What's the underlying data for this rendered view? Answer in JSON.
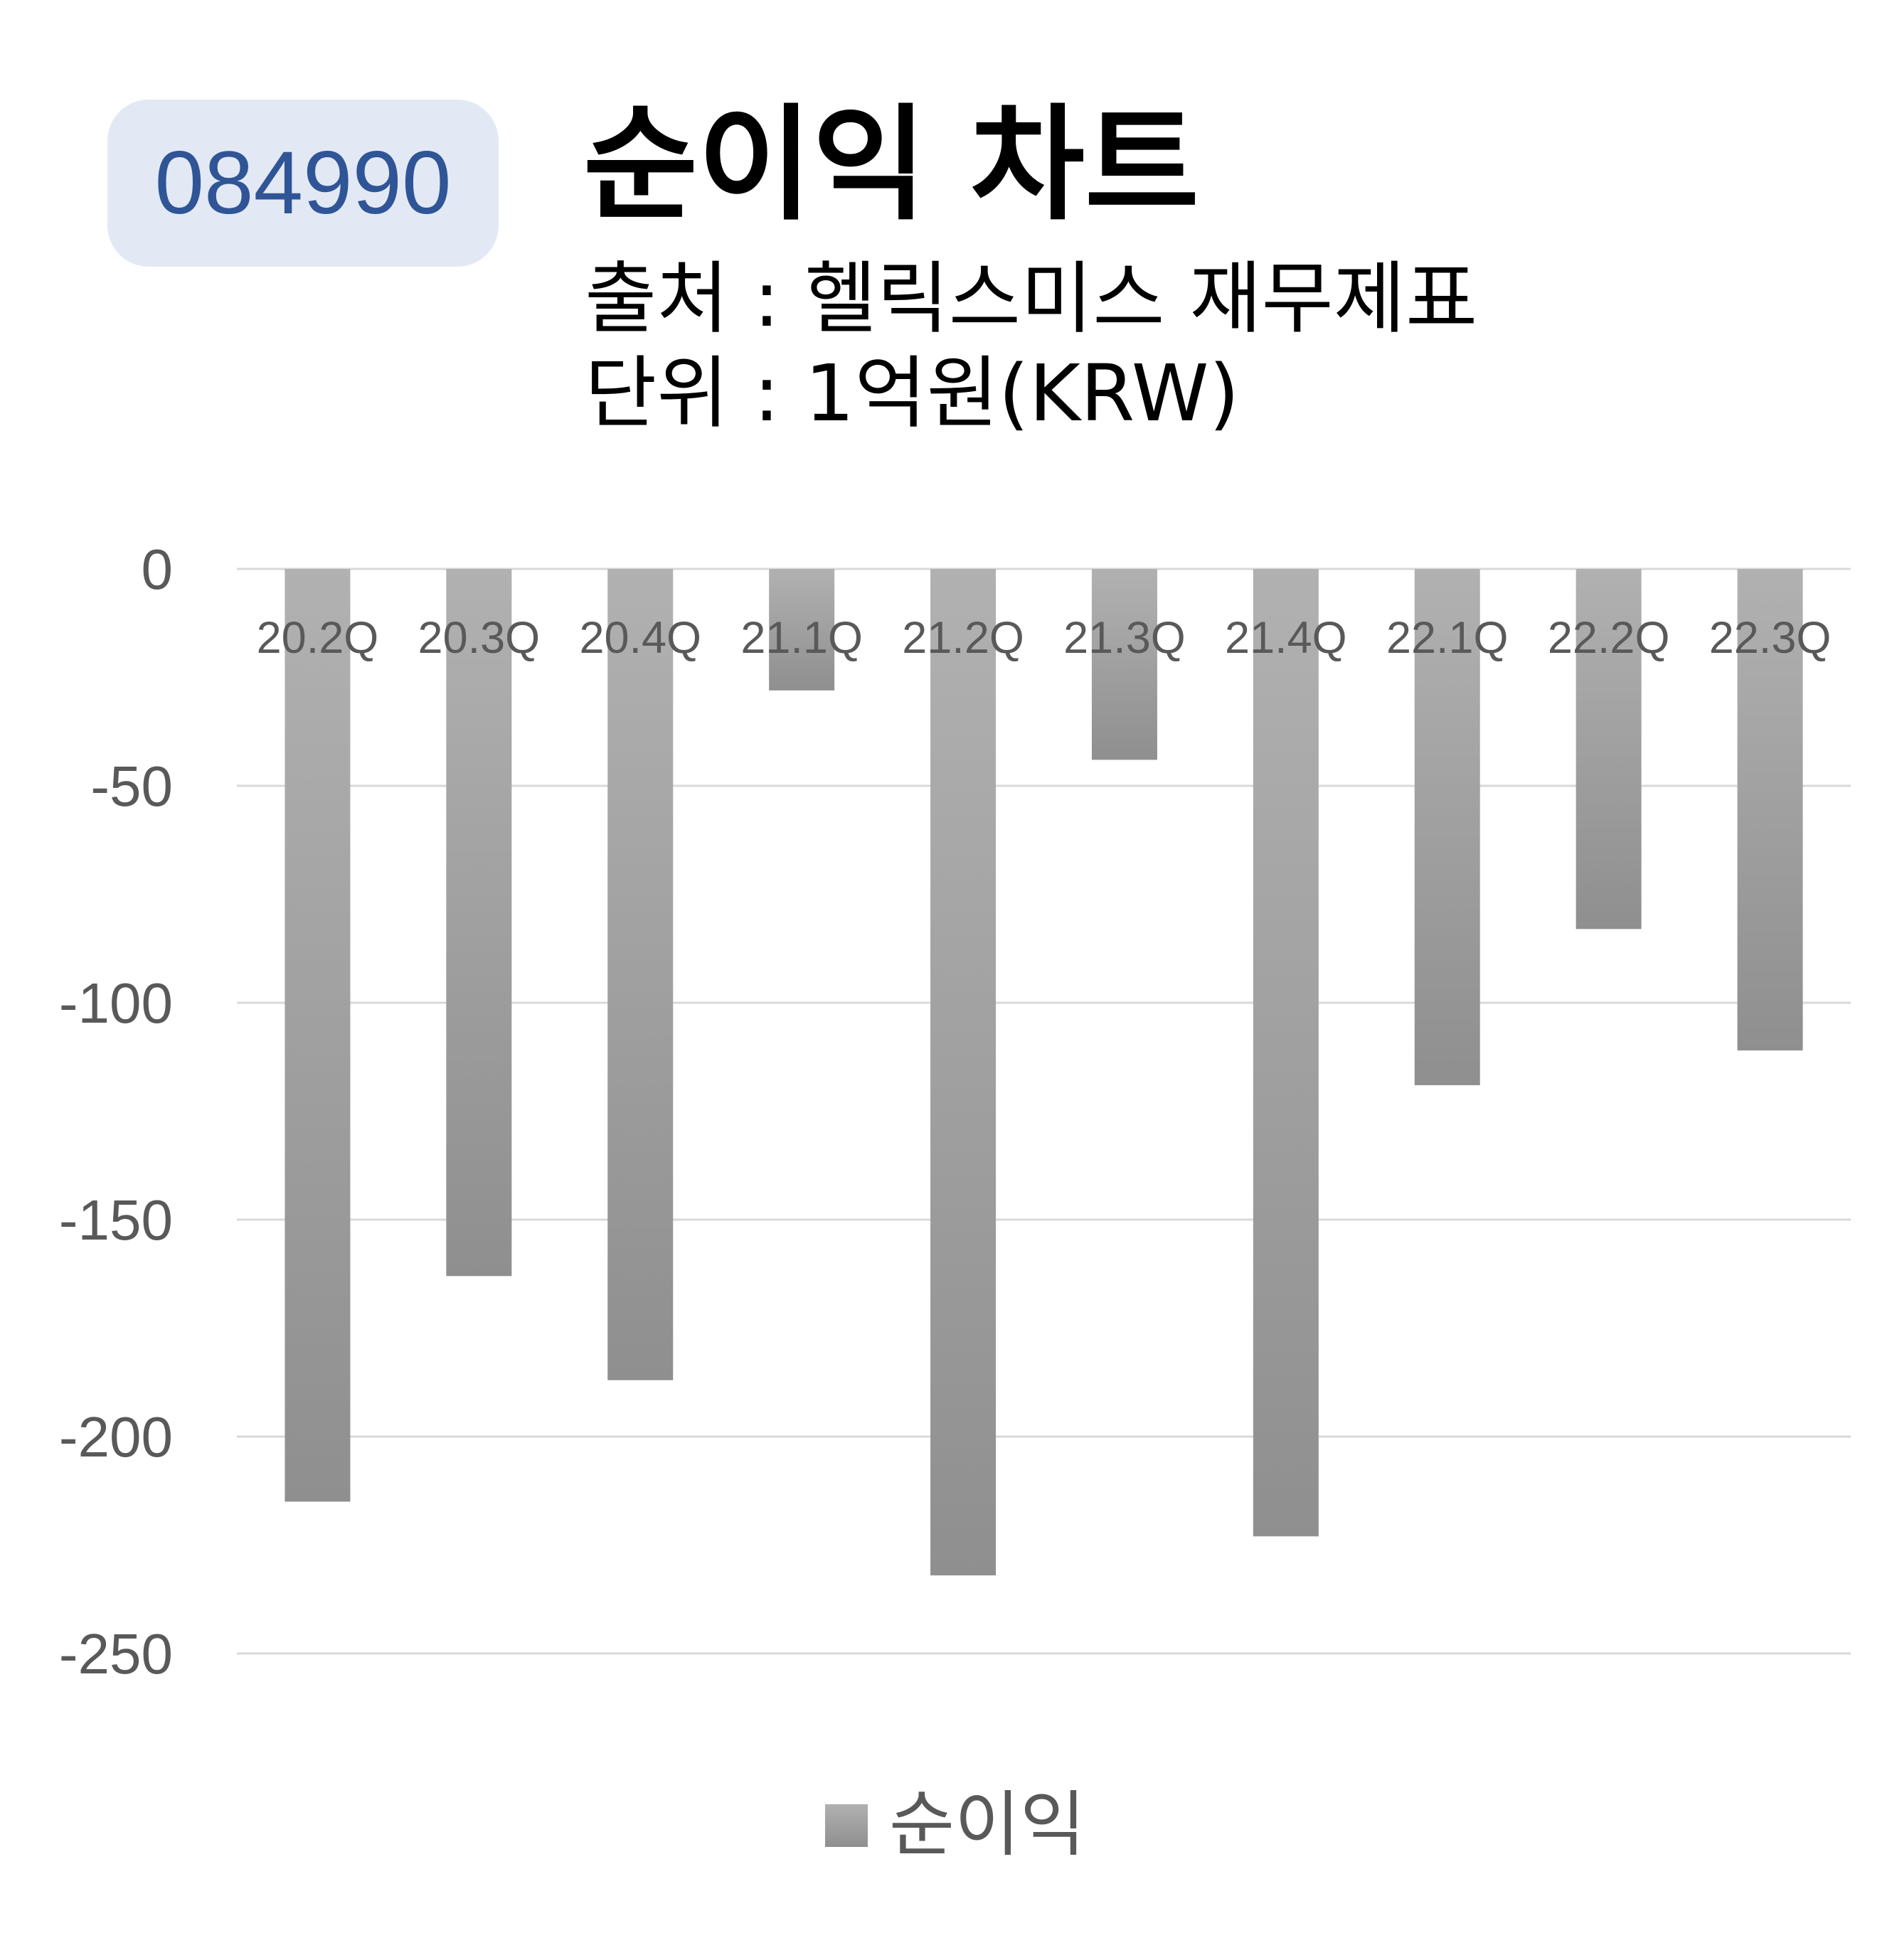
{
  "badge": {
    "code": "084990"
  },
  "header": {
    "title": "순이익 차트",
    "source": "출처 : 헬릭스미스 재무제표",
    "unit": "단위 : 1억원(KRW)"
  },
  "colors": {
    "bar_top": "#b1b1b1",
    "bar_bottom": "#8f8f8f",
    "grid": "#d9d9d9",
    "axis_text": "#595959",
    "badge_text": "#2f5597",
    "badge_bg": "#e3e9f4"
  },
  "chart_data": {
    "type": "bar",
    "categories": [
      "20.2Q",
      "20.3Q",
      "20.4Q",
      "21.1Q",
      "21.2Q",
      "21.3Q",
      "21.4Q",
      "22.1Q",
      "22.2Q",
      "22.3Q"
    ],
    "series": [
      {
        "name": "순이익",
        "values": [
          -215,
          -163,
          -187,
          -28,
          -232,
          -44,
          -223,
          -119,
          -83,
          -111
        ]
      }
    ],
    "ylim": [
      -250,
      0
    ],
    "yticks": [
      0,
      -50,
      -100,
      -150,
      -200,
      -250
    ],
    "grid": true,
    "legend": "bottom"
  }
}
